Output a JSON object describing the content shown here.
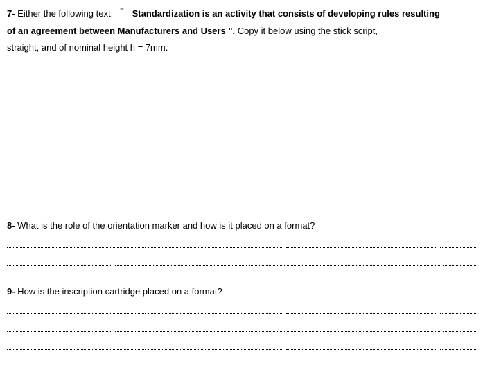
{
  "q7": {
    "number": "7-",
    "lead": " Either the following text:",
    "quote_open": "\"",
    "bold_part1": "Standardization is an activity that consists of developing rules resulting",
    "bold_part2": "of an agreement between Manufacturers and Users \".",
    "tail1": " Copy it below using the stick script,",
    "tail2": "straight, and of nominal height h = 7mm."
  },
  "q8": {
    "number": "8-",
    "text": " What is the role of the orientation marker and how is it placed on a format?"
  },
  "q9": {
    "number": "9-",
    "text": " How is the inscription cartridge placed on a format?"
  }
}
